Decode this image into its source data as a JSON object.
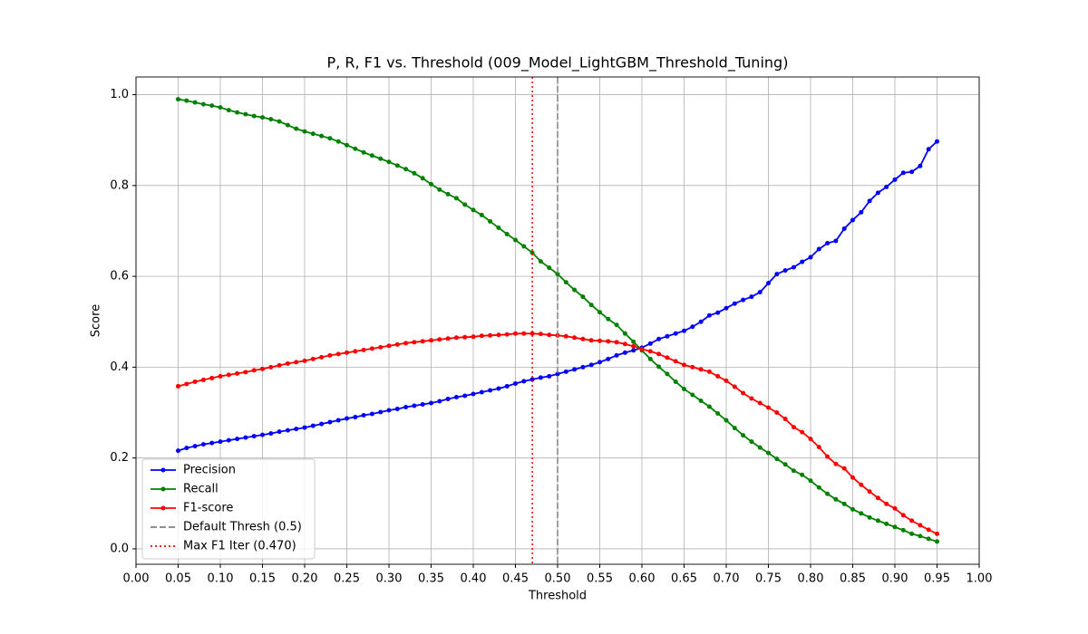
{
  "chart_data": {
    "type": "line",
    "title": "P, R, F1 vs. Threshold (009_Model_LightGBM_Threshold_Tuning)",
    "xlabel": "Threshold",
    "ylabel": "Score",
    "x": [
      0.05,
      0.06,
      0.07,
      0.08,
      0.09,
      0.1,
      0.11,
      0.12,
      0.13,
      0.14,
      0.15,
      0.16,
      0.17,
      0.18,
      0.19,
      0.2,
      0.21,
      0.22,
      0.23,
      0.24,
      0.25,
      0.26,
      0.27,
      0.28,
      0.29,
      0.3,
      0.31,
      0.32,
      0.33,
      0.34,
      0.35,
      0.36,
      0.37,
      0.38,
      0.39,
      0.4,
      0.41,
      0.42,
      0.43,
      0.44,
      0.45,
      0.46,
      0.47,
      0.48,
      0.49,
      0.5,
      0.51,
      0.52,
      0.53,
      0.54,
      0.55,
      0.56,
      0.57,
      0.58,
      0.59,
      0.6,
      0.61,
      0.62,
      0.63,
      0.64,
      0.65,
      0.66,
      0.67,
      0.68,
      0.69,
      0.7,
      0.71,
      0.72,
      0.73,
      0.74,
      0.75,
      0.76,
      0.77,
      0.78,
      0.79,
      0.8,
      0.81,
      0.82,
      0.83,
      0.84,
      0.85,
      0.86,
      0.87,
      0.88,
      0.89,
      0.9,
      0.91,
      0.92,
      0.93,
      0.94,
      0.95
    ],
    "series": [
      {
        "name": "Precision",
        "color": "#0000ff",
        "values": [
          0.216,
          0.222,
          0.226,
          0.23,
          0.233,
          0.236,
          0.239,
          0.242,
          0.245,
          0.248,
          0.251,
          0.254,
          0.258,
          0.261,
          0.264,
          0.267,
          0.271,
          0.275,
          0.279,
          0.283,
          0.287,
          0.29,
          0.294,
          0.297,
          0.301,
          0.305,
          0.308,
          0.312,
          0.315,
          0.318,
          0.321,
          0.325,
          0.33,
          0.334,
          0.337,
          0.341,
          0.345,
          0.349,
          0.353,
          0.358,
          0.364,
          0.369,
          0.373,
          0.377,
          0.38,
          0.385,
          0.39,
          0.395,
          0.4,
          0.405,
          0.411,
          0.418,
          0.426,
          0.432,
          0.437,
          0.443,
          0.452,
          0.462,
          0.468,
          0.474,
          0.48,
          0.489,
          0.5,
          0.514,
          0.52,
          0.53,
          0.54,
          0.548,
          0.555,
          0.565,
          0.585,
          0.605,
          0.613,
          0.62,
          0.632,
          0.642,
          0.66,
          0.673,
          0.678,
          0.705,
          0.724,
          0.741,
          0.766,
          0.784,
          0.797,
          0.813,
          0.828,
          0.83,
          0.843,
          0.88,
          0.897
        ]
      },
      {
        "name": "Recall",
        "color": "#008000",
        "values": [
          0.99,
          0.987,
          0.983,
          0.979,
          0.976,
          0.972,
          0.966,
          0.961,
          0.957,
          0.953,
          0.95,
          0.946,
          0.941,
          0.933,
          0.925,
          0.919,
          0.914,
          0.909,
          0.904,
          0.897,
          0.889,
          0.881,
          0.873,
          0.866,
          0.859,
          0.852,
          0.844,
          0.836,
          0.827,
          0.816,
          0.803,
          0.791,
          0.781,
          0.772,
          0.758,
          0.746,
          0.735,
          0.721,
          0.707,
          0.693,
          0.68,
          0.666,
          0.652,
          0.633,
          0.619,
          0.605,
          0.587,
          0.57,
          0.555,
          0.537,
          0.521,
          0.506,
          0.493,
          0.474,
          0.456,
          0.437,
          0.418,
          0.401,
          0.385,
          0.368,
          0.352,
          0.339,
          0.326,
          0.313,
          0.298,
          0.283,
          0.266,
          0.25,
          0.236,
          0.223,
          0.211,
          0.198,
          0.186,
          0.172,
          0.163,
          0.15,
          0.135,
          0.121,
          0.109,
          0.099,
          0.087,
          0.078,
          0.069,
          0.062,
          0.055,
          0.048,
          0.041,
          0.033,
          0.028,
          0.022,
          0.016
        ]
      },
      {
        "name": "F1-score",
        "color": "#ff0000",
        "values": [
          0.358,
          0.363,
          0.368,
          0.372,
          0.376,
          0.38,
          0.383,
          0.386,
          0.389,
          0.393,
          0.396,
          0.4,
          0.404,
          0.408,
          0.411,
          0.414,
          0.418,
          0.422,
          0.426,
          0.429,
          0.432,
          0.435,
          0.438,
          0.441,
          0.444,
          0.447,
          0.45,
          0.453,
          0.455,
          0.457,
          0.459,
          0.461,
          0.463,
          0.465,
          0.466,
          0.467,
          0.469,
          0.47,
          0.471,
          0.472,
          0.474,
          0.474,
          0.474,
          0.473,
          0.471,
          0.47,
          0.468,
          0.465,
          0.462,
          0.459,
          0.458,
          0.457,
          0.455,
          0.451,
          0.446,
          0.44,
          0.435,
          0.429,
          0.421,
          0.413,
          0.405,
          0.4,
          0.395,
          0.39,
          0.38,
          0.37,
          0.357,
          0.343,
          0.331,
          0.321,
          0.311,
          0.3,
          0.286,
          0.268,
          0.257,
          0.242,
          0.224,
          0.203,
          0.187,
          0.177,
          0.157,
          0.141,
          0.126,
          0.112,
          0.099,
          0.089,
          0.074,
          0.062,
          0.052,
          0.042,
          0.033
        ]
      }
    ],
    "vlines": [
      {
        "name": "Default Thresh (0.5)",
        "x": 0.5,
        "color": "#808080",
        "style": "dashed"
      },
      {
        "name": "Max F1 Iter (0.470)",
        "x": 0.47,
        "color": "#ff0000",
        "style": "dotted"
      }
    ],
    "xlim": [
      0,
      1
    ],
    "ylim": [
      -0.034,
      1.039
    ],
    "xticks": [
      {
        "value": 0,
        "label": "0.00"
      },
      0.05,
      {
        "value": 0.1,
        "label": "0.10"
      },
      0.15,
      {
        "value": 0.2,
        "label": "0.20"
      },
      0.25,
      {
        "value": 0.3,
        "label": "0.30"
      },
      0.35,
      {
        "value": 0.4,
        "label": "0.40"
      },
      0.45,
      {
        "value": 0.5,
        "label": "0.50"
      },
      0.55,
      {
        "value": 0.6,
        "label": "0.60"
      },
      0.65,
      {
        "value": 0.7,
        "label": "0.70"
      },
      0.75,
      {
        "value": 0.8,
        "label": "0.80"
      },
      0.85,
      {
        "value": 0.9,
        "label": "0.90"
      },
      0.95,
      {
        "value": 1,
        "label": "1.00"
      }
    ],
    "yticks": [
      {
        "value": 0,
        "label": "0.0"
      },
      0.2,
      0.4,
      0.6,
      0.8,
      {
        "value": 1,
        "label": "1.0"
      }
    ],
    "grid": true,
    "legend": "lower left"
  }
}
